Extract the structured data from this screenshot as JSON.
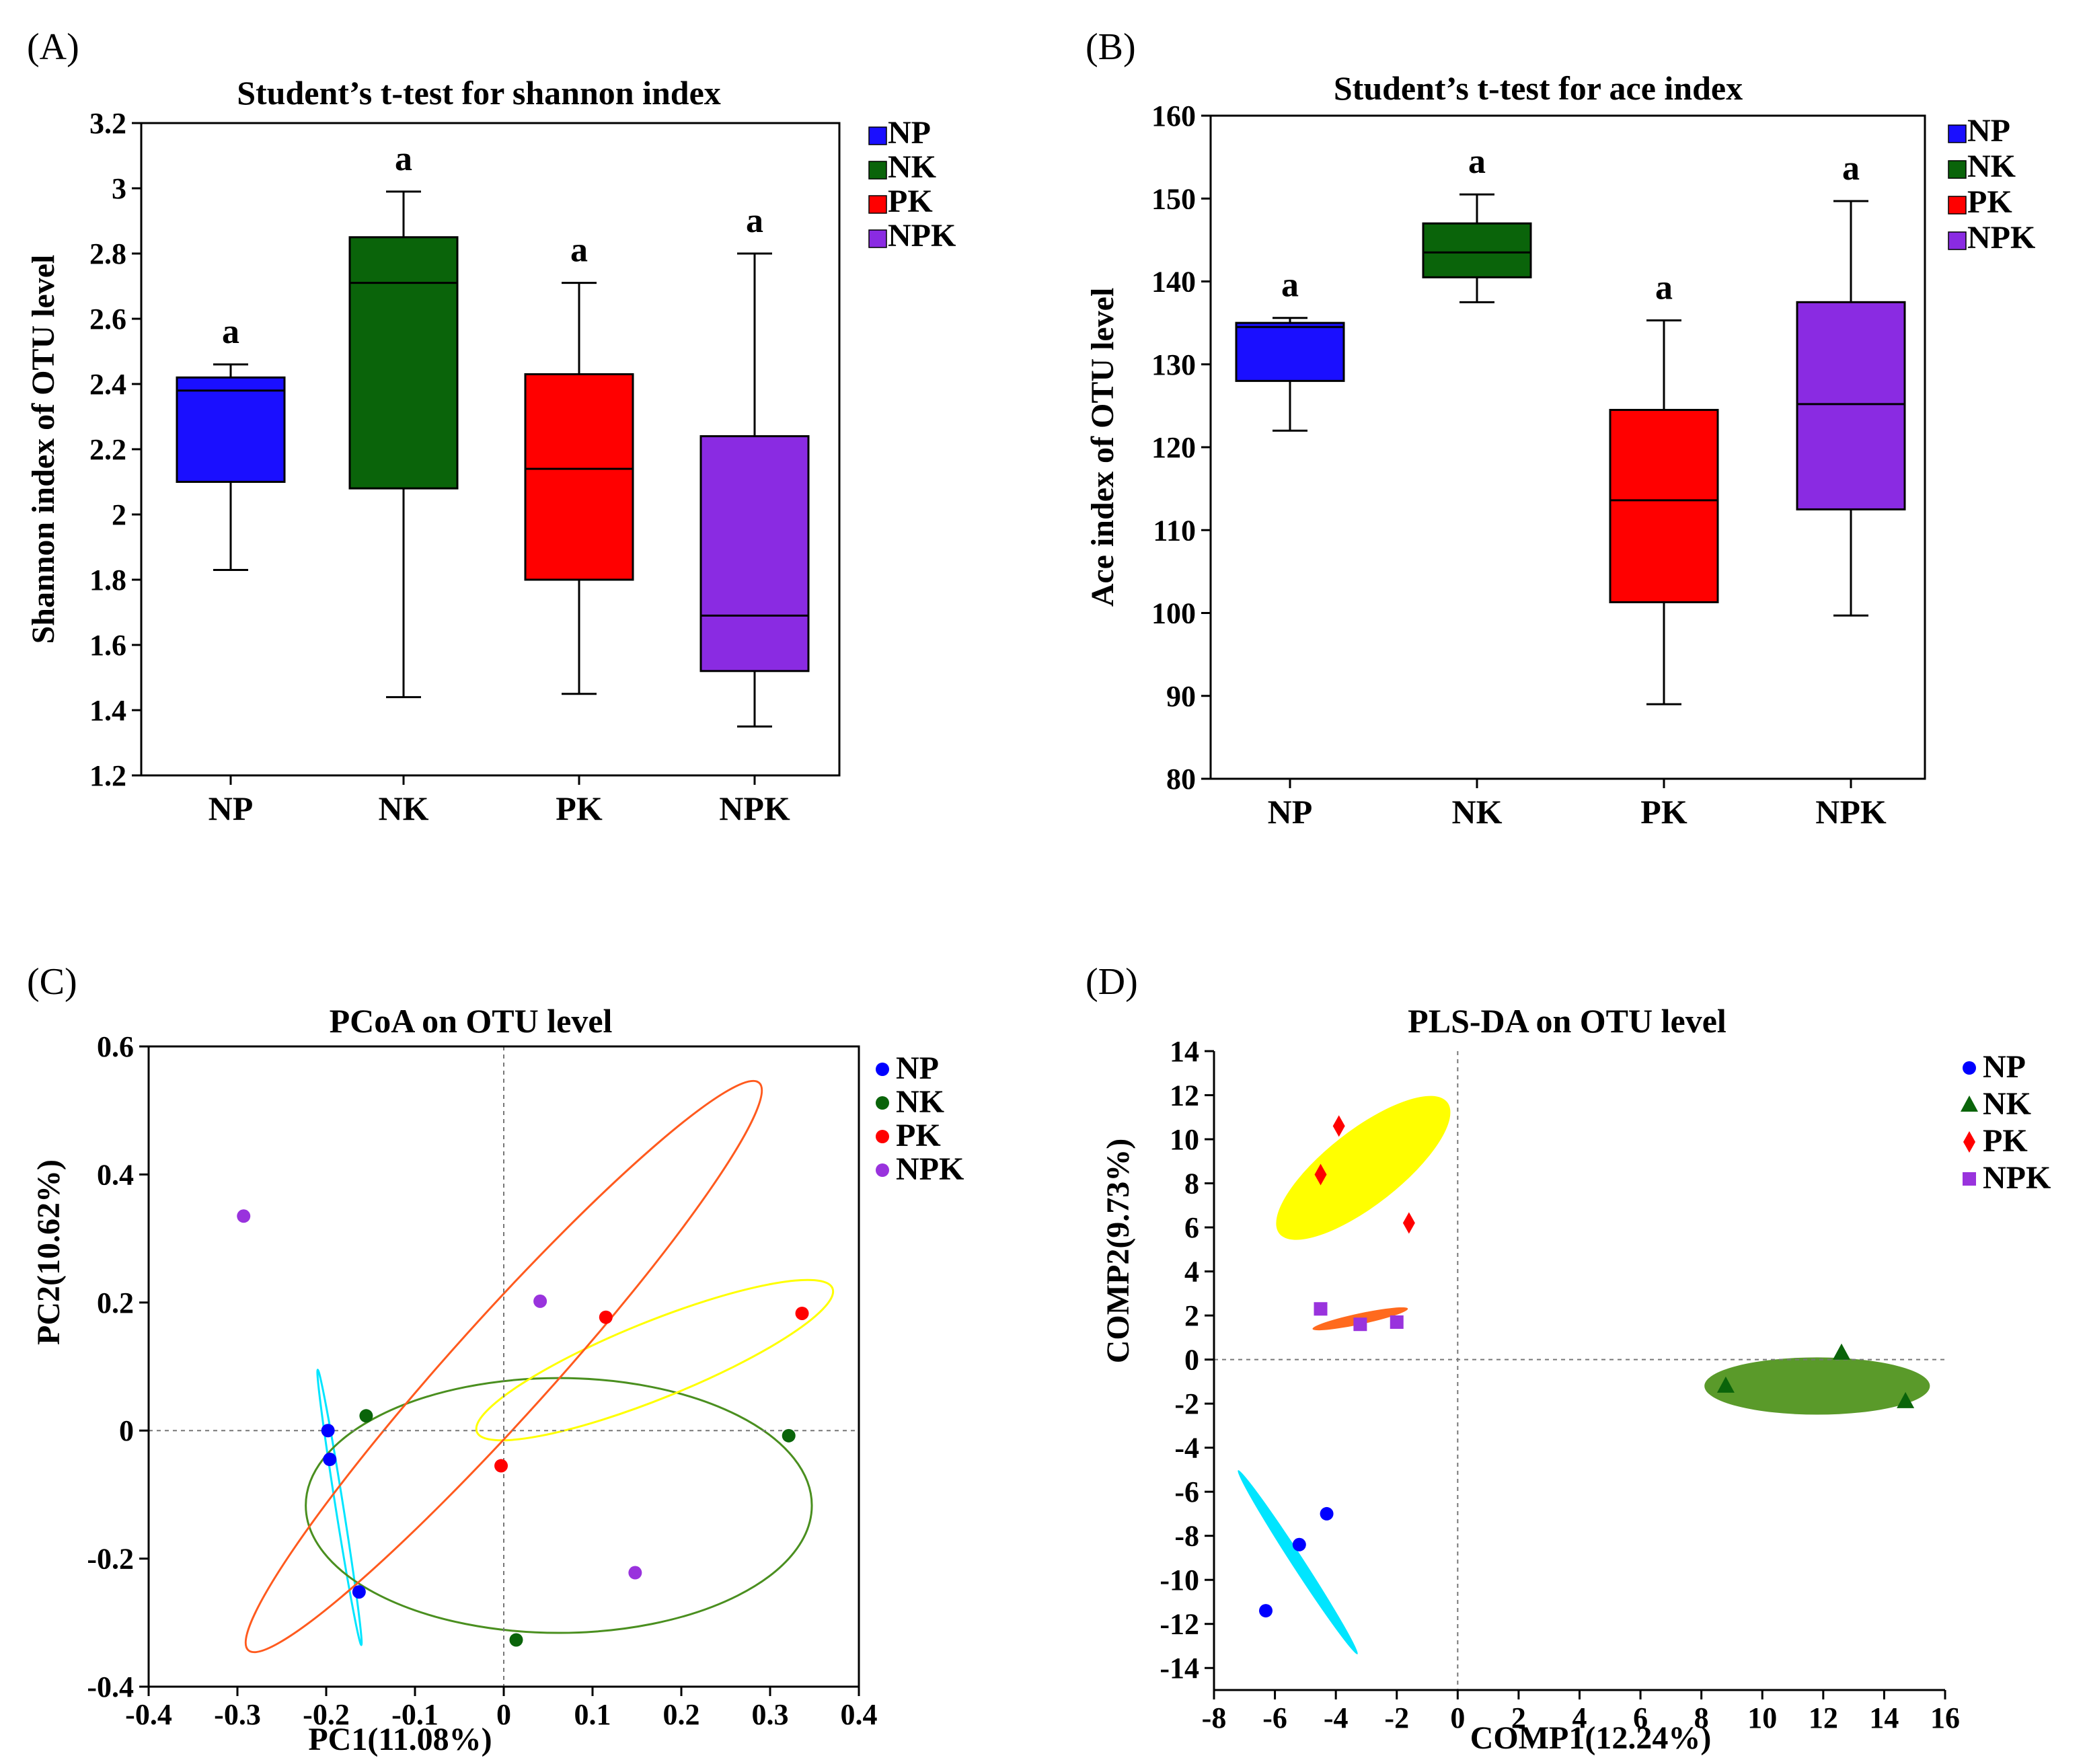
{
  "panels": {
    "A": {
      "letter": "(A)",
      "chart_data": {
        "type": "box",
        "title": "Student’s t-test for shannon index",
        "xlabel": "",
        "ylabel": "Shannon index of OTU level",
        "ylim": [
          1.2,
          3.2
        ],
        "yticks": [
          1.2,
          1.4,
          1.6,
          1.8,
          2,
          2.2,
          2.4,
          2.6,
          2.8,
          3,
          3.2
        ],
        "categories": [
          "NP",
          "NK",
          "PK",
          "NPK"
        ],
        "colors": [
          "#1a0fff",
          "#0a640a",
          "#ff0000",
          "#8a2be2"
        ],
        "boxes": [
          {
            "min": 1.83,
            "q1": 2.1,
            "median": 2.38,
            "q3": 2.42,
            "max": 2.46,
            "label": "a"
          },
          {
            "min": 1.44,
            "q1": 2.08,
            "median": 2.71,
            "q3": 2.85,
            "max": 2.99,
            "label": "a"
          },
          {
            "min": 1.45,
            "q1": 1.8,
            "median": 2.14,
            "q3": 2.43,
            "max": 2.71,
            "label": "a"
          },
          {
            "min": 1.35,
            "q1": 1.52,
            "median": 1.69,
            "q3": 2.24,
            "max": 2.8,
            "label": "a"
          }
        ],
        "legend": [
          "NP",
          "NK",
          "PK",
          "NPK"
        ],
        "legend_position": "right"
      }
    },
    "B": {
      "letter": "(B)",
      "chart_data": {
        "type": "box",
        "title": "Student’s t-test for ace index",
        "xlabel": "",
        "ylabel": "Ace index of OTU level",
        "ylim": [
          80,
          160
        ],
        "yticks": [
          80,
          90,
          100,
          110,
          120,
          130,
          140,
          150,
          160
        ],
        "categories": [
          "NP",
          "NK",
          "PK",
          "NPK"
        ],
        "colors": [
          "#1a0fff",
          "#0a640a",
          "#ff0000",
          "#8a2be2"
        ],
        "boxes": [
          {
            "min": 122,
            "q1": 128,
            "median": 134.5,
            "q3": 135,
            "max": 135.6,
            "label": "a"
          },
          {
            "min": 137.5,
            "q1": 140.5,
            "median": 143.5,
            "q3": 147,
            "max": 150.5,
            "label": "a"
          },
          {
            "min": 89,
            "q1": 101.3,
            "median": 113.6,
            "q3": 124.5,
            "max": 135.3,
            "label": "a"
          },
          {
            "min": 99.7,
            "q1": 112.5,
            "median": 125.2,
            "q3": 137.5,
            "max": 149.7,
            "label": "a"
          }
        ],
        "legend": [
          "NP",
          "NK",
          "PK",
          "NPK"
        ],
        "legend_position": "right"
      }
    },
    "C": {
      "letter": "(C)",
      "chart_data": {
        "type": "scatter",
        "title": "PCoA on OTU level",
        "xlabel": "PC1(11.08%)",
        "ylabel": "PC2(10.62%)",
        "xlim": [
          -0.4,
          0.4
        ],
        "ylim": [
          -0.4,
          0.6
        ],
        "xticks": [
          -0.4,
          -0.3,
          -0.2,
          -0.1,
          0,
          0.1,
          0.2,
          0.3,
          0.4
        ],
        "xtick_labels": [
          "-0.4",
          "-0.3",
          "-0.2",
          "-0.1",
          "0",
          "0.1",
          "0.2",
          "0.3",
          "0.4"
        ],
        "yticks": [
          -0.4,
          -0.2,
          0,
          0.2,
          0.4,
          0.6
        ],
        "ytick_labels": [
          "-0.4",
          "-0.2",
          "0",
          "0.2",
          "0.4",
          "0.6"
        ],
        "series": [
          {
            "name": "NP",
            "color": "#0000ff",
            "marker": "circle",
            "points": [
              [
                -0.198,
                0.0
              ],
              [
                -0.196,
                -0.045
              ],
              [
                -0.163,
                -0.252
              ]
            ],
            "ellipse": {
              "cx": -0.185,
              "cy": -0.12,
              "rx": 0.157,
              "ry": 0.006,
              "angle": 81,
              "color": "#00e5ff"
            }
          },
          {
            "name": "NK",
            "color": "#0a640a",
            "marker": "circle",
            "points": [
              [
                -0.155,
                0.023
              ],
              [
                0.321,
                -0.008
              ],
              [
                0.014,
                -0.327
              ]
            ],
            "ellipse": {
              "cx": 0.062,
              "cy": -0.117,
              "rx": 0.285,
              "ry": 0.199,
              "angle": 0,
              "color": "#4a8f1f"
            }
          },
          {
            "name": "PK",
            "color": "#ff0000",
            "marker": "circle",
            "points": [
              [
                0.115,
                0.177
              ],
              [
                0.336,
                0.183
              ],
              [
                -0.003,
                -0.055
              ]
            ],
            "ellipse": {
              "cx": 0.17,
              "cy": 0.11,
              "rx": 0.216,
              "ry": 0.06,
              "angle": -22,
              "color": "#ffff00"
            }
          },
          {
            "name": "NPK",
            "color": "#9933dd",
            "marker": "circle",
            "points": [
              [
                -0.293,
                0.335
              ],
              [
                0.041,
                0.202
              ],
              [
                0.148,
                -0.222
              ]
            ],
            "ellipse": {
              "cx": 0.0,
              "cy": 0.1,
              "rx": 0.43,
              "ry": 0.077,
              "angle": -48,
              "color": "#ff5a1e"
            }
          }
        ],
        "legend": [
          "NP",
          "NK",
          "PK",
          "NPK"
        ],
        "legend_position": "right"
      }
    },
    "D": {
      "letter": "(D)",
      "chart_data": {
        "type": "scatter",
        "title": "PLS-DA on OTU level",
        "xlabel": "COMP1(12.24%)",
        "ylabel": "COMP2(9.73%)",
        "xlim": [
          -8,
          16
        ],
        "ylim": [
          -15,
          14
        ],
        "xticks": [
          -8,
          -6,
          -4,
          -2,
          0,
          2,
          4,
          6,
          8,
          10,
          12,
          14,
          16
        ],
        "xtick_labels": [
          "-8",
          "-6",
          "-4",
          "-2",
          "0",
          "2",
          "4",
          "6",
          "8",
          "10",
          "12",
          "14",
          "16"
        ],
        "yticks": [
          -14,
          -12,
          -10,
          -8,
          -6,
          -4,
          -2,
          0,
          2,
          4,
          6,
          8,
          10,
          12,
          14
        ],
        "ytick_labels": [
          "-14",
          "-12",
          "-10",
          "-8",
          "-6",
          "-4",
          "-2",
          "0",
          "2",
          "4",
          "6",
          "8",
          "10",
          "12",
          "14"
        ],
        "series": [
          {
            "name": "NP",
            "color": "#0000ff",
            "marker": "circle",
            "points": [
              [
                -6.3,
                -11.4
              ],
              [
                -5.2,
                -8.4
              ],
              [
                -4.3,
                -7.0
              ]
            ],
            "ellipse": {
              "cx": -5.25,
              "cy": -9.2,
              "rx": 3.6,
              "ry": 0.28,
              "angle": 57,
              "color": "#00e5ff"
            }
          },
          {
            "name": "NK",
            "color": "#0a640a",
            "marker": "triangle",
            "points": [
              [
                8.8,
                -1.2
              ],
              [
                12.6,
                0.3
              ],
              [
                14.7,
                -1.9
              ]
            ],
            "ellipse": {
              "cx": 11.8,
              "cy": -1.2,
              "rx": 3.7,
              "ry": 1.3,
              "angle": 0,
              "color": "#5a9a2a"
            }
          },
          {
            "name": "PK",
            "color": "#ff0000",
            "marker": "diamond",
            "points": [
              [
                -3.9,
                10.6
              ],
              [
                -4.5,
                8.4
              ],
              [
                -1.6,
                6.2
              ]
            ],
            "ellipse": {
              "cx": -3.1,
              "cy": 8.7,
              "rx": 3.5,
              "ry": 1.7,
              "angle": -38,
              "color": "#ffff00"
            }
          },
          {
            "name": "NPK",
            "color": "#9933dd",
            "marker": "square",
            "points": [
              [
                -4.5,
                2.3
              ],
              [
                -3.2,
                1.6
              ],
              [
                -2.0,
                1.7
              ]
            ],
            "ellipse": {
              "cx": -3.2,
              "cy": 1.85,
              "rx": 1.6,
              "ry": 0.25,
              "angle": -12,
              "color": "#ff6a1e"
            }
          }
        ],
        "legend": [
          "NP",
          "NK",
          "PK",
          "NPK"
        ],
        "legend_position": "right"
      }
    }
  }
}
